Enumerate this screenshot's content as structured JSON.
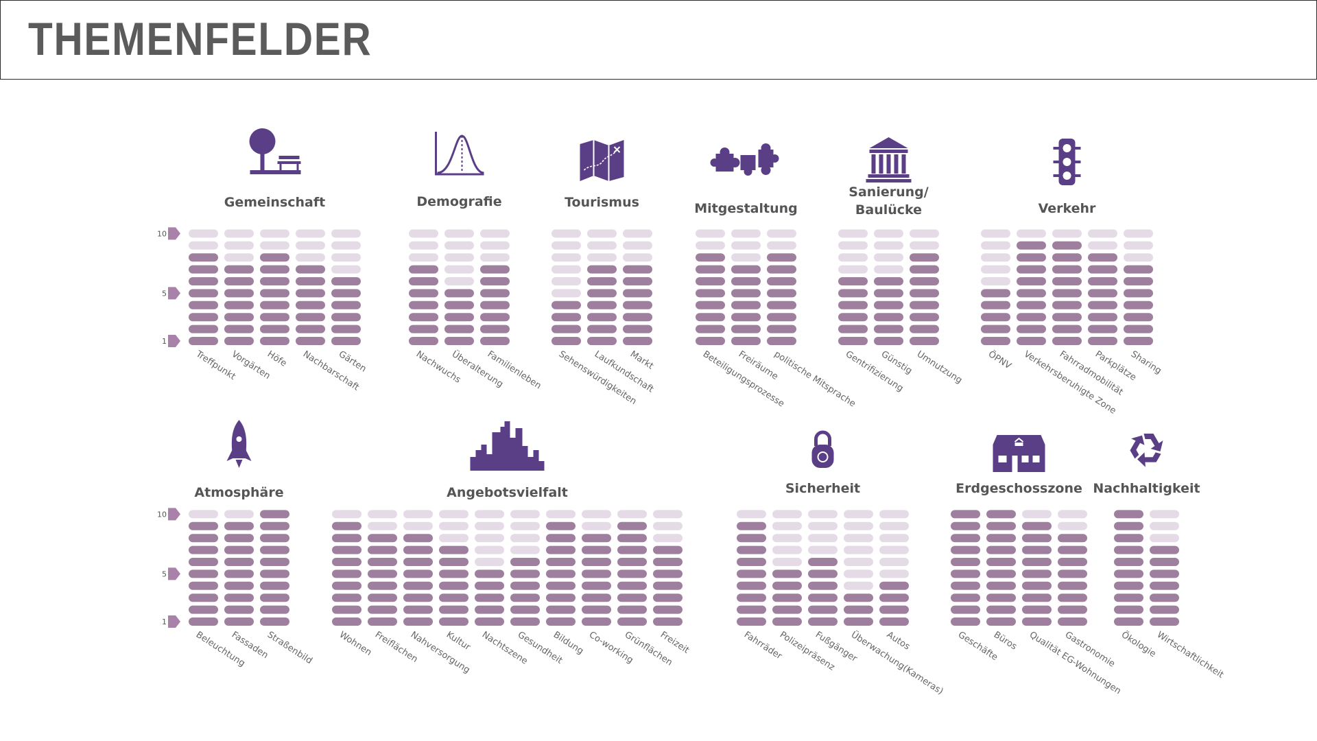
{
  "page": {
    "title": "THEMENFELDER"
  },
  "colors": {
    "filled": "#9e7f9e",
    "empty": "#e4dbe6",
    "icon": "#5a3f86",
    "group_title": "#555555",
    "label": "#666666",
    "tick_marker": "#a882a8"
  },
  "chart_data": [
    {
      "type": "bar",
      "style": "segmented-pill-columns",
      "title": "Gemeinschaft",
      "icon": "tree-bench-icon",
      "y_ticks": [
        "10",
        "5",
        "1"
      ],
      "ylim": [
        0,
        10
      ],
      "categories": [
        "Treffpunkt",
        "Vorgärten",
        "Höfe",
        "Nachbarschaft",
        "Gärten"
      ],
      "values": [
        8,
        7,
        8,
        7,
        6
      ]
    },
    {
      "type": "bar",
      "style": "segmented-pill-columns",
      "title": "Demografie",
      "icon": "bell-curve-icon",
      "y_ticks": [],
      "ylim": [
        0,
        10
      ],
      "categories": [
        "Nachwuchs",
        "Überalterung",
        "Familienleben"
      ],
      "values": [
        7,
        5,
        7
      ]
    },
    {
      "type": "bar",
      "style": "segmented-pill-columns",
      "title": "Tourismus",
      "icon": "map-icon",
      "y_ticks": [],
      "ylim": [
        0,
        10
      ],
      "categories": [
        "Sehenswürdigkeiten",
        "Laufkundschaft",
        "Markt"
      ],
      "values": [
        4,
        7,
        7
      ]
    },
    {
      "type": "bar",
      "style": "segmented-pill-columns",
      "title": "Mitgestaltung",
      "icon": "puzzle-icon",
      "y_ticks": [],
      "ylim": [
        0,
        10
      ],
      "categories": [
        "Beteiligungsprozesse",
        "Freiräume",
        "politische Mitsprache"
      ],
      "values": [
        8,
        7,
        8
      ]
    },
    {
      "type": "bar",
      "style": "segmented-pill-columns",
      "title": "Sanierung/ Baulücke",
      "icon": "building-columns-icon",
      "y_ticks": [],
      "ylim": [
        0,
        10
      ],
      "categories": [
        "Gentrifizierung",
        "Günstig",
        "Umnutzung"
      ],
      "values": [
        6,
        6,
        8
      ]
    },
    {
      "type": "bar",
      "style": "segmented-pill-columns",
      "title": "Verkehr",
      "icon": "traffic-light-icon",
      "y_ticks": [],
      "ylim": [
        0,
        10
      ],
      "categories": [
        "ÖPNV",
        "Verkehrsberuhigte Zone",
        "Fahrradmobilität",
        "Parkplätze",
        "Sharing"
      ],
      "values": [
        5,
        9,
        9,
        8,
        7
      ]
    },
    {
      "type": "bar",
      "style": "segmented-pill-columns",
      "title": "Atmosphäre",
      "icon": "rocket-icon",
      "y_ticks": [
        "10",
        "5",
        "1"
      ],
      "ylim": [
        0,
        10
      ],
      "categories": [
        "Beleuchtung",
        "Fassaden",
        "Straßenbild"
      ],
      "values": [
        9,
        9,
        10
      ]
    },
    {
      "type": "bar",
      "style": "segmented-pill-columns",
      "title": "Angebotsvielfalt",
      "icon": "city-skyline-icon",
      "y_ticks": [],
      "ylim": [
        0,
        10
      ],
      "categories": [
        "Wohnen",
        "Freiflächen",
        "Nahversorgung",
        "Kultur",
        "Nachtszene",
        "Gesundheit",
        "Bildung",
        "Co-working",
        "Grünflächen",
        "Freizeit"
      ],
      "values": [
        9,
        8,
        8,
        7,
        5,
        6,
        9,
        8,
        9,
        7
      ]
    },
    {
      "type": "bar",
      "style": "segmented-pill-columns",
      "title": "Sicherheit",
      "icon": "padlock-icon",
      "y_ticks": [],
      "ylim": [
        0,
        10
      ],
      "categories": [
        "Fahrräder",
        "Polizeipräsenz",
        "Fußgänger",
        "Überwachung(Kameras)",
        "Autos"
      ],
      "values": [
        9,
        5,
        6,
        3,
        4
      ]
    },
    {
      "type": "bar",
      "style": "segmented-pill-columns",
      "title": "Erdgeschosszone",
      "icon": "house-icon",
      "y_ticks": [],
      "ylim": [
        0,
        10
      ],
      "categories": [
        "Geschäfte",
        "Büros",
        "Qualität EG-Wohnungen",
        "Gastronomie"
      ],
      "values": [
        10,
        10,
        9,
        8
      ]
    },
    {
      "type": "bar",
      "style": "segmented-pill-columns",
      "title": "Nachhaltigkeit",
      "icon": "recycle-icon",
      "y_ticks": [],
      "ylim": [
        0,
        10
      ],
      "categories": [
        "Ökologie",
        "Wirtschaftlichkeit"
      ],
      "values": [
        10,
        7
      ]
    }
  ]
}
